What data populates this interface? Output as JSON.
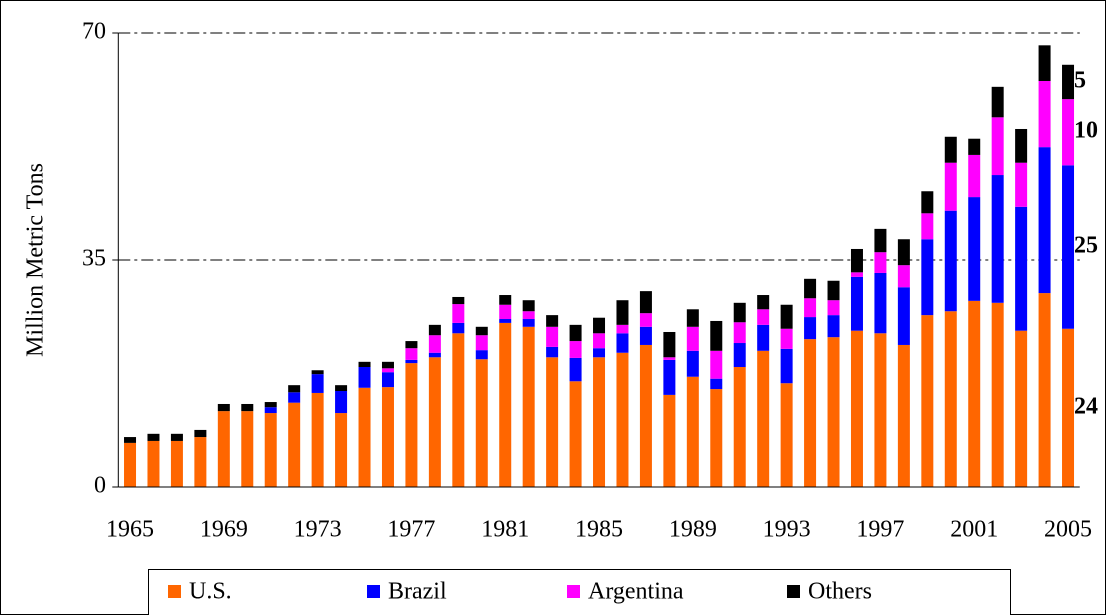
{
  "chart_data": {
    "type": "stacked_bar",
    "y_label": "Million Metric Tons",
    "categories": [
      "1965",
      null,
      null,
      null,
      "1969",
      null,
      null,
      null,
      "1973",
      null,
      null,
      null,
      "1977",
      null,
      null,
      null,
      "1981",
      null,
      null,
      null,
      "1985",
      null,
      null,
      null,
      "1989",
      null,
      null,
      null,
      "1993",
      null,
      null,
      null,
      "1997",
      null,
      null,
      null,
      "2001",
      null,
      null,
      null,
      "2005"
    ],
    "ylim": [
      0,
      70
    ],
    "yticks": [
      0,
      35,
      70
    ],
    "grid": true,
    "legend": "bottom",
    "series": [
      {
        "name": "U.S.",
        "color": "#ff6600",
        "label_color": "#ff6600",
        "values": [
          6.8,
          7.1,
          7.1,
          7.7,
          11.7,
          11.7,
          11.4,
          13.0,
          14.5,
          11.4,
          15.3,
          15.4,
          19.1,
          20.0,
          23.7,
          19.7,
          25.3,
          24.7,
          20.0,
          16.3,
          20.0,
          20.7,
          21.9,
          14.2,
          17.0,
          15.1,
          18.5,
          21.0,
          16.0,
          22.8,
          23.1,
          24.1,
          23.7,
          21.9,
          26.5,
          27.1,
          28.7,
          28.4,
          24.1,
          29.9,
          24.4
        ],
        "value_labels": [
          null,
          null,
          null,
          null,
          null,
          null,
          null,
          null,
          null,
          null,
          null,
          null,
          null,
          null,
          null,
          null,
          null,
          null,
          null,
          null,
          null,
          null,
          null,
          null,
          null,
          null,
          null,
          null,
          null,
          null,
          null,
          null,
          null,
          null,
          null,
          null,
          null,
          null,
          null,
          null,
          "24"
        ]
      },
      {
        "name": "Brazil",
        "color": "#0000ff",
        "label_color": "#3366ff",
        "values": [
          0,
          0,
          0,
          0,
          0,
          0,
          0.9,
          1.6,
          2.9,
          3.4,
          3.2,
          2.3,
          0.5,
          0.7,
          1.6,
          1.4,
          0.6,
          1.2,
          1.6,
          3.6,
          1.4,
          3.0,
          2.8,
          5.4,
          4.0,
          1.6,
          3.7,
          4.0,
          5.3,
          3.4,
          3.4,
          8.3,
          9.3,
          8.9,
          11.7,
          15.5,
          16.0,
          19.7,
          19.1,
          22.5,
          25.2
        ],
        "value_labels": [
          null,
          null,
          null,
          null,
          null,
          null,
          null,
          null,
          null,
          null,
          null,
          null,
          null,
          null,
          null,
          null,
          null,
          null,
          null,
          null,
          null,
          null,
          null,
          null,
          null,
          null,
          null,
          null,
          null,
          null,
          null,
          null,
          null,
          null,
          null,
          null,
          null,
          null,
          null,
          null,
          "25"
        ]
      },
      {
        "name": "Argentina",
        "color": "#ff00ff",
        "label_color": "#ff00ff",
        "values": [
          0,
          0,
          0,
          0,
          0,
          0,
          0,
          0,
          0,
          0,
          0,
          0.6,
          1.8,
          2.7,
          2.9,
          2.3,
          2.2,
          1.2,
          3.1,
          2.6,
          2.3,
          1.3,
          2.1,
          0.4,
          3.7,
          4.3,
          3.2,
          2.4,
          3.1,
          2.9,
          2.3,
          0.7,
          3.2,
          3.4,
          4.0,
          7.4,
          6.5,
          8.9,
          6.8,
          10.2,
          10.2
        ],
        "value_labels": [
          null,
          null,
          null,
          null,
          null,
          null,
          null,
          null,
          null,
          null,
          null,
          null,
          null,
          null,
          null,
          null,
          null,
          null,
          null,
          null,
          null,
          null,
          null,
          null,
          null,
          null,
          null,
          null,
          null,
          null,
          null,
          null,
          null,
          null,
          null,
          null,
          null,
          null,
          null,
          null,
          "10"
        ]
      },
      {
        "name": "Others",
        "color": "#000000",
        "label_color": "#000000",
        "values": [
          0.9,
          1.1,
          1.1,
          1.1,
          1.1,
          1.1,
          0.8,
          1.1,
          0.6,
          0.9,
          0.8,
          1.0,
          1.1,
          1.6,
          1.1,
          1.3,
          1.5,
          1.7,
          1.8,
          2.5,
          2.4,
          3.8,
          3.4,
          3.9,
          2.7,
          4.6,
          3.0,
          2.2,
          3.7,
          3.0,
          3.0,
          3.6,
          3.6,
          4.0,
          3.4,
          4.0,
          2.5,
          4.7,
          5.2,
          5.5,
          5.3
        ],
        "value_labels": [
          null,
          null,
          null,
          null,
          null,
          null,
          null,
          null,
          null,
          null,
          null,
          null,
          null,
          null,
          null,
          null,
          null,
          null,
          null,
          null,
          null,
          null,
          null,
          null,
          null,
          null,
          null,
          null,
          null,
          null,
          null,
          null,
          null,
          null,
          null,
          null,
          null,
          null,
          null,
          null,
          "5"
        ]
      }
    ]
  }
}
